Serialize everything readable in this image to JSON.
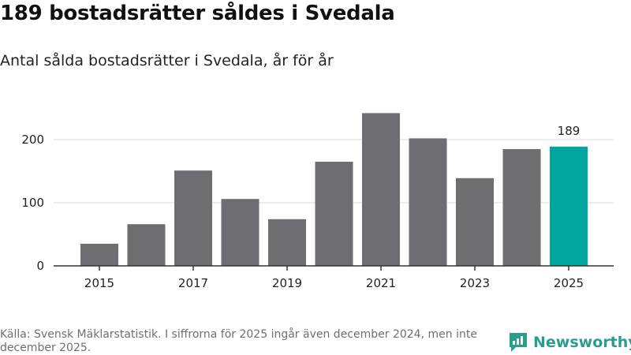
{
  "title": "189 bostadsrätter såldes i Svedala",
  "subtitle": "Antal sålda bostadsrätter i Svedala, år för år",
  "source": "Källa: Svensk Mäklarstatistik. I siffrorna för 2025 ingår även december 2024, men inte december 2025.",
  "brand": {
    "name": "Newsworthy",
    "color": "#2a9d8f"
  },
  "colors": {
    "bar": "#6e6d72",
    "highlight": "#00a59b",
    "grid": "#d9d9d9",
    "axis": "#333333"
  },
  "chart_data": {
    "type": "bar",
    "categories": [
      "2015",
      "2016",
      "2017",
      "2018",
      "2019",
      "2020",
      "2021",
      "2022",
      "2023",
      "2024",
      "2025"
    ],
    "values": [
      35,
      66,
      151,
      106,
      74,
      165,
      242,
      202,
      139,
      185,
      189
    ],
    "highlight_index": 10,
    "highlight_label": "189",
    "xticks": [
      "2015",
      "2017",
      "2019",
      "2021",
      "2023",
      "2025"
    ],
    "yticks": [
      0,
      100,
      200
    ],
    "ylim": [
      0,
      250
    ],
    "xlabel": "",
    "ylabel": "",
    "grid": true
  }
}
